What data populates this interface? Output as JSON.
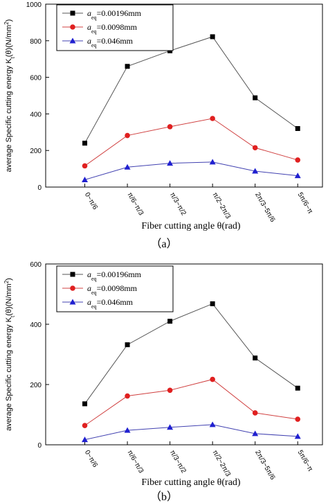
{
  "chart_data": [
    {
      "type": "line",
      "panel_label": "（a）",
      "categories": [
        "0~π/6",
        "π/6~π/3",
        "π/3~π/2",
        "π/2~2π/3",
        "2π/3~5π/6",
        "5π/6~π"
      ],
      "xlabel": "Fiber cutting angle θ(rad)",
      "ylabel": "average Specific cutting energy K",
      "ylabel_sub": "t",
      "ylabel_tail": "(θ)(N/mm",
      "ylabel_sup": "2",
      "ylabel_close": ")",
      "ylim": [
        0,
        1000
      ],
      "yticks": [
        0,
        200,
        400,
        600,
        800,
        1000
      ],
      "grid": false,
      "legend_position": "top-left",
      "series": [
        {
          "legend_prefix": "a",
          "legend_sub": "eq",
          "legend_value": "=0.00196mm",
          "marker": "square",
          "color": "#000000",
          "line_color": "#555555",
          "values": [
            240,
            660,
            745,
            822,
            488,
            320
          ]
        },
        {
          "legend_prefix": "a",
          "legend_sub": "eq",
          "legend_value": "=0.0098mm",
          "marker": "circle",
          "color": "#e02020",
          "line_color": "#d04040",
          "values": [
            116,
            282,
            330,
            375,
            215,
            148
          ]
        },
        {
          "legend_prefix": "a",
          "legend_sub": "eq",
          "legend_value": "=0.046mm",
          "marker": "triangle",
          "color": "#2020d0",
          "line_color": "#4040b0",
          "values": [
            40,
            109,
            130,
            137,
            87,
            62
          ]
        }
      ]
    },
    {
      "type": "line",
      "panel_label": "（b）",
      "categories": [
        "0~π/6",
        "π/6~π/3",
        "π/3~π/2",
        "π/2~2π/3",
        "2π/3~5π/6",
        "5π/6~π"
      ],
      "xlabel": "Fiber cutting angle θ(rad)",
      "ylabel": "average Specific cutting energy K",
      "ylabel_sub": "t",
      "ylabel_tail": "(θ)(N/mm",
      "ylabel_sup": "2",
      "ylabel_close": ")",
      "ylim": [
        0,
        600
      ],
      "yticks": [
        0,
        200,
        400,
        600
      ],
      "grid": false,
      "legend_position": "top-left",
      "series": [
        {
          "legend_prefix": "a",
          "legend_sub": "eq",
          "legend_value": "=0.00196mm",
          "marker": "square",
          "color": "#000000",
          "line_color": "#555555",
          "values": [
            136,
            332,
            410,
            468,
            288,
            188
          ]
        },
        {
          "legend_prefix": "a",
          "legend_sub": "eq",
          "legend_value": "=0.0098mm",
          "marker": "circle",
          "color": "#e02020",
          "line_color": "#d04040",
          "values": [
            64,
            162,
            181,
            217,
            106,
            85
          ]
        },
        {
          "legend_prefix": "a",
          "legend_sub": "eq",
          "legend_value": "=0.046mm",
          "marker": "triangle",
          "color": "#2020d0",
          "line_color": "#4040b0",
          "values": [
            17,
            48,
            58,
            67,
            37,
            28
          ]
        }
      ]
    }
  ]
}
